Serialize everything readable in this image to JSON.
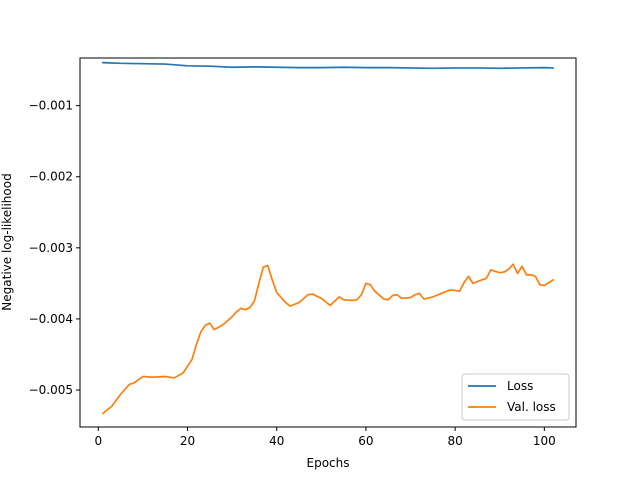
{
  "chart_data": {
    "type": "line",
    "title": "",
    "xlabel": "Epochs",
    "ylabel": "Negative log-likelihood",
    "xlim": [
      -4.1,
      107.1
    ],
    "ylim": [
      -0.00552,
      -0.00033
    ],
    "xticks": [
      0,
      20,
      40,
      60,
      80,
      100
    ],
    "xtick_labels": [
      "0",
      "20",
      "40",
      "60",
      "80",
      "100"
    ],
    "yticks": [
      -0.005,
      -0.004,
      -0.003,
      -0.002,
      -0.001
    ],
    "ytick_labels": [
      "−0.005",
      "−0.004",
      "−0.003",
      "−0.002",
      "−0.001"
    ],
    "grid": false,
    "legend_position": "lower-right",
    "series": [
      {
        "name": "Loss",
        "color": "#1f77b4",
        "points": [
          [
            1,
            -0.000395
          ],
          [
            5,
            -0.000405
          ],
          [
            10,
            -0.00041
          ],
          [
            15,
            -0.000415
          ],
          [
            20,
            -0.00044
          ],
          [
            25,
            -0.000445
          ],
          [
            30,
            -0.00046
          ],
          [
            35,
            -0.000455
          ],
          [
            40,
            -0.00046
          ],
          [
            45,
            -0.000465
          ],
          [
            50,
            -0.000465
          ],
          [
            55,
            -0.00046
          ],
          [
            60,
            -0.000465
          ],
          [
            65,
            -0.000465
          ],
          [
            70,
            -0.00047
          ],
          [
            75,
            -0.000475
          ],
          [
            80,
            -0.00047
          ],
          [
            85,
            -0.00047
          ],
          [
            90,
            -0.000475
          ],
          [
            95,
            -0.00047
          ],
          [
            100,
            -0.000465
          ],
          [
            102,
            -0.00047
          ]
        ]
      },
      {
        "name": "Val. loss",
        "color": "#ff7f0e",
        "points": [
          [
            1,
            -0.00533
          ],
          [
            3,
            -0.00523
          ],
          [
            5,
            -0.00506
          ],
          [
            7,
            -0.00492
          ],
          [
            8,
            -0.0049
          ],
          [
            10,
            -0.00481
          ],
          [
            12,
            -0.00482
          ],
          [
            15,
            -0.00481
          ],
          [
            17,
            -0.00483
          ],
          [
            19,
            -0.00476
          ],
          [
            21,
            -0.00457
          ],
          [
            22,
            -0.00436
          ],
          [
            23,
            -0.00418
          ],
          [
            24,
            -0.00409
          ],
          [
            25,
            -0.00406
          ],
          [
            26,
            -0.00415
          ],
          [
            28,
            -0.00408
          ],
          [
            30,
            -0.00397
          ],
          [
            31,
            -0.0039
          ],
          [
            32,
            -0.00385
          ],
          [
            33,
            -0.00387
          ],
          [
            34,
            -0.00384
          ],
          [
            35,
            -0.00375
          ],
          [
            36,
            -0.0035
          ],
          [
            37,
            -0.00327
          ],
          [
            38,
            -0.00325
          ],
          [
            39,
            -0.00345
          ],
          [
            40,
            -0.00363
          ],
          [
            42,
            -0.00377
          ],
          [
            43,
            -0.00382
          ],
          [
            45,
            -0.00377
          ],
          [
            47,
            -0.00366
          ],
          [
            48,
            -0.00365
          ],
          [
            50,
            -0.00371
          ],
          [
            51,
            -0.00376
          ],
          [
            52,
            -0.00381
          ],
          [
            53,
            -0.00375
          ],
          [
            54,
            -0.00369
          ],
          [
            55,
            -0.00373
          ],
          [
            57,
            -0.00374
          ],
          [
            58,
            -0.00373
          ],
          [
            59,
            -0.00366
          ],
          [
            60,
            -0.0035
          ],
          [
            61,
            -0.00352
          ],
          [
            62,
            -0.00361
          ],
          [
            64,
            -0.00372
          ],
          [
            65,
            -0.00373
          ],
          [
            66,
            -0.00367
          ],
          [
            67,
            -0.00366
          ],
          [
            68,
            -0.00371
          ],
          [
            70,
            -0.0037
          ],
          [
            71,
            -0.00366
          ],
          [
            72,
            -0.00364
          ],
          [
            73,
            -0.00372
          ],
          [
            75,
            -0.00369
          ],
          [
            77,
            -0.00364
          ],
          [
            79,
            -0.00359
          ],
          [
            81,
            -0.00361
          ],
          [
            82,
            -0.00349
          ],
          [
            83,
            -0.0034
          ],
          [
            84,
            -0.0035
          ],
          [
            86,
            -0.00345
          ],
          [
            87,
            -0.00343
          ],
          [
            88,
            -0.00331
          ],
          [
            89,
            -0.00333
          ],
          [
            90,
            -0.00335
          ],
          [
            91,
            -0.00334
          ],
          [
            92,
            -0.0033
          ],
          [
            93,
            -0.00323
          ],
          [
            94,
            -0.00336
          ],
          [
            95,
            -0.00326
          ],
          [
            96,
            -0.00338
          ],
          [
            97,
            -0.00338
          ],
          [
            98,
            -0.0034
          ],
          [
            99,
            -0.00352
          ],
          [
            100,
            -0.00353
          ],
          [
            102,
            -0.00345
          ]
        ]
      }
    ]
  }
}
